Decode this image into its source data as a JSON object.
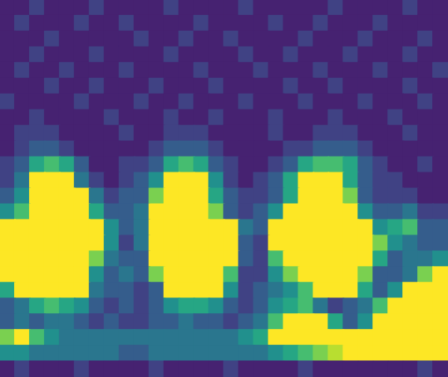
{
  "chart_data": {
    "type": "heatmap",
    "color": "viridis",
    "tick_labels": false,
    "zlim": [
      0,
      10
    ],
    "cells": [
      [
        1,
        1,
        2,
        1,
        1,
        1,
        2,
        1,
        1,
        1,
        1,
        2,
        1,
        1,
        1,
        1,
        2,
        1,
        1,
        1,
        1,
        1,
        2,
        1,
        1,
        1,
        1,
        2,
        1,
        1
      ],
      [
        1,
        2,
        1,
        1,
        1,
        2,
        1,
        1,
        2,
        1,
        1,
        1,
        1,
        2,
        1,
        1,
        1,
        1,
        2,
        1,
        1,
        2,
        1,
        1,
        1,
        2,
        1,
        1,
        1,
        1
      ],
      [
        1,
        1,
        1,
        2,
        1,
        1,
        1,
        1,
        1,
        2,
        1,
        1,
        2,
        1,
        1,
        2,
        1,
        1,
        1,
        1,
        2,
        1,
        1,
        1,
        2,
        1,
        1,
        1,
        2,
        1
      ],
      [
        1,
        1,
        2,
        1,
        1,
        1,
        2,
        1,
        1,
        1,
        1,
        2,
        1,
        1,
        1,
        1,
        2,
        1,
        1,
        2,
        1,
        1,
        1,
        2,
        1,
        1,
        1,
        2,
        1,
        1
      ],
      [
        1,
        2,
        1,
        1,
        2,
        1,
        1,
        1,
        2,
        1,
        1,
        1,
        1,
        2,
        1,
        1,
        1,
        2,
        1,
        1,
        1,
        2,
        1,
        1,
        1,
        2,
        1,
        1,
        1,
        2
      ],
      [
        1,
        1,
        1,
        2,
        1,
        1,
        2,
        1,
        1,
        1,
        2,
        1,
        1,
        1,
        2,
        1,
        1,
        1,
        1,
        2,
        1,
        1,
        2,
        1,
        1,
        1,
        1,
        2,
        1,
        1
      ],
      [
        2,
        1,
        1,
        1,
        1,
        2,
        1,
        1,
        1,
        2,
        1,
        1,
        2,
        1,
        1,
        1,
        2,
        1,
        1,
        1,
        2,
        1,
        1,
        1,
        2,
        1,
        1,
        1,
        2,
        1
      ],
      [
        1,
        1,
        2,
        1,
        1,
        1,
        1,
        2,
        1,
        1,
        1,
        2,
        1,
        1,
        2,
        1,
        1,
        1,
        2,
        1,
        1,
        1,
        2,
        1,
        1,
        1,
        2,
        1,
        1,
        1
      ],
      [
        1,
        2,
        2,
        2,
        1,
        1,
        1,
        1,
        2,
        1,
        1,
        2,
        2,
        2,
        1,
        1,
        1,
        1,
        2,
        1,
        1,
        2,
        2,
        2,
        1,
        1,
        1,
        2,
        1,
        1
      ],
      [
        1,
        2,
        3,
        3,
        2,
        1,
        1,
        1,
        1,
        1,
        2,
        3,
        3,
        3,
        2,
        1,
        1,
        1,
        1,
        2,
        2,
        3,
        3,
        3,
        2,
        1,
        1,
        1,
        1,
        1
      ],
      [
        2,
        3,
        6,
        7,
        6,
        3,
        1,
        1,
        2,
        2,
        3,
        6,
        7,
        6,
        3,
        2,
        1,
        1,
        2,
        3,
        6,
        7,
        7,
        6,
        3,
        2,
        1,
        1,
        2,
        1
      ],
      [
        2,
        4,
        10,
        10,
        10,
        4,
        2,
        1,
        2,
        3,
        5,
        10,
        10,
        10,
        5,
        2,
        1,
        2,
        3,
        6,
        10,
        10,
        10,
        6,
        3,
        2,
        2,
        1,
        1,
        1
      ],
      [
        3,
        5,
        10,
        10,
        10,
        10,
        4,
        2,
        3,
        3,
        8,
        10,
        10,
        10,
        6,
        3,
        2,
        2,
        3,
        6,
        10,
        10,
        10,
        8,
        3,
        2,
        2,
        2,
        1,
        1
      ],
      [
        5,
        7,
        10,
        10,
        10,
        10,
        6,
        3,
        3,
        4,
        10,
        10,
        10,
        10,
        8,
        3,
        2,
        3,
        5,
        10,
        10,
        10,
        10,
        10,
        5,
        3,
        3,
        4,
        2,
        2
      ],
      [
        10,
        10,
        10,
        10,
        10,
        10,
        10,
        5,
        3,
        4,
        10,
        10,
        10,
        10,
        10,
        10,
        4,
        3,
        10,
        10,
        10,
        10,
        10,
        10,
        10,
        5,
        6,
        7,
        3,
        3
      ],
      [
        10,
        10,
        10,
        10,
        10,
        10,
        10,
        5,
        2,
        4,
        10,
        10,
        10,
        10,
        10,
        10,
        3,
        2,
        10,
        10,
        10,
        10,
        10,
        10,
        10,
        8,
        5,
        4,
        3,
        3
      ],
      [
        10,
        10,
        10,
        10,
        10,
        10,
        8,
        4,
        3,
        3,
        10,
        10,
        10,
        10,
        10,
        10,
        3,
        2,
        7,
        10,
        10,
        10,
        10,
        10,
        10,
        6,
        3,
        4,
        4,
        5
      ],
      [
        10,
        10,
        10,
        10,
        10,
        10,
        5,
        3,
        4,
        3,
        8,
        10,
        10,
        10,
        10,
        7,
        2,
        2,
        5,
        8,
        10,
        10,
        10,
        10,
        8,
        3,
        3,
        4,
        8,
        10
      ],
      [
        6,
        10,
        10,
        10,
        10,
        10,
        4,
        3,
        3,
        2,
        3,
        10,
        10,
        10,
        10,
        5,
        2,
        3,
        4,
        5,
        7,
        10,
        10,
        10,
        6,
        3,
        5,
        10,
        10,
        10
      ],
      [
        3,
        4,
        6,
        7,
        6,
        5,
        3,
        2,
        3,
        2,
        3,
        5,
        6,
        6,
        5,
        3,
        2,
        3,
        5,
        6,
        7,
        4,
        2,
        3,
        4,
        7,
        10,
        10,
        10,
        10
      ],
      [
        3,
        4,
        3,
        4,
        4,
        3,
        2,
        3,
        2,
        2,
        3,
        3,
        4,
        3,
        3,
        2,
        3,
        4,
        7,
        10,
        10,
        10,
        6,
        3,
        5,
        10,
        10,
        10,
        10,
        10
      ],
      [
        8,
        10,
        7,
        5,
        4,
        4,
        4,
        4,
        4,
        4,
        4,
        4,
        4,
        4,
        4,
        4,
        5,
        6,
        10,
        10,
        10,
        10,
        10,
        10,
        10,
        10,
        10,
        10,
        10,
        10
      ],
      [
        5,
        5,
        4,
        4,
        4,
        4,
        4,
        4,
        3,
        3,
        4,
        4,
        4,
        4,
        4,
        4,
        4,
        4,
        5,
        6,
        7,
        8,
        9,
        10,
        10,
        10,
        10,
        10,
        10,
        10
      ],
      [
        1,
        2,
        1,
        1,
        1,
        2,
        1,
        1,
        1,
        1,
        2,
        1,
        1,
        1,
        1,
        2,
        1,
        1,
        1,
        1,
        2,
        1,
        1,
        1,
        1,
        1,
        1,
        1,
        2,
        1
      ]
    ]
  }
}
